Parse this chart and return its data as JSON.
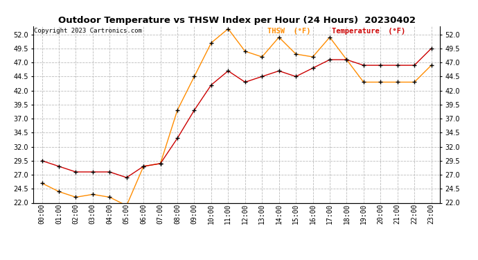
{
  "title": "Outdoor Temperature vs THSW Index per Hour (24 Hours)  20230402",
  "copyright": "Copyright 2023 Cartronics.com",
  "hours": [
    "00:00",
    "01:00",
    "02:00",
    "03:00",
    "04:00",
    "05:00",
    "06:00",
    "07:00",
    "08:00",
    "09:00",
    "10:00",
    "11:00",
    "12:00",
    "13:00",
    "14:00",
    "15:00",
    "16:00",
    "17:00",
    "18:00",
    "19:00",
    "20:00",
    "21:00",
    "22:00",
    "23:00"
  ],
  "temperature": [
    29.5,
    28.5,
    27.5,
    27.5,
    27.5,
    26.5,
    28.5,
    29.0,
    33.5,
    38.5,
    43.0,
    45.5,
    43.5,
    44.5,
    45.5,
    44.5,
    46.0,
    47.5,
    47.5,
    46.5,
    46.5,
    46.5,
    46.5,
    49.5
  ],
  "thsw": [
    25.5,
    24.0,
    23.0,
    23.5,
    23.0,
    21.5,
    28.5,
    29.0,
    38.5,
    44.5,
    50.5,
    53.0,
    49.0,
    48.0,
    51.5,
    48.5,
    48.0,
    51.5,
    47.5,
    43.5,
    43.5,
    43.5,
    43.5,
    46.5
  ],
  "temp_color": "#cc0000",
  "thsw_color": "#ff8c00",
  "marker": "+",
  "marker_color": "black",
  "marker_size": 4,
  "ylim_min": 22.0,
  "ylim_max": 53.5,
  "yticks": [
    22.0,
    24.5,
    27.0,
    29.5,
    32.0,
    34.5,
    37.0,
    39.5,
    42.0,
    44.5,
    47.0,
    49.5,
    52.0
  ],
  "bg_color": "#ffffff",
  "grid_color": "#bbbbbb",
  "title_fontsize": 9.5,
  "tick_fontsize": 7,
  "legend_thsw": "THSW  (°F)",
  "legend_temp": "Temperature  (°F)",
  "thsw_legend_color": "#ff8c00",
  "temp_legend_color": "#cc0000"
}
